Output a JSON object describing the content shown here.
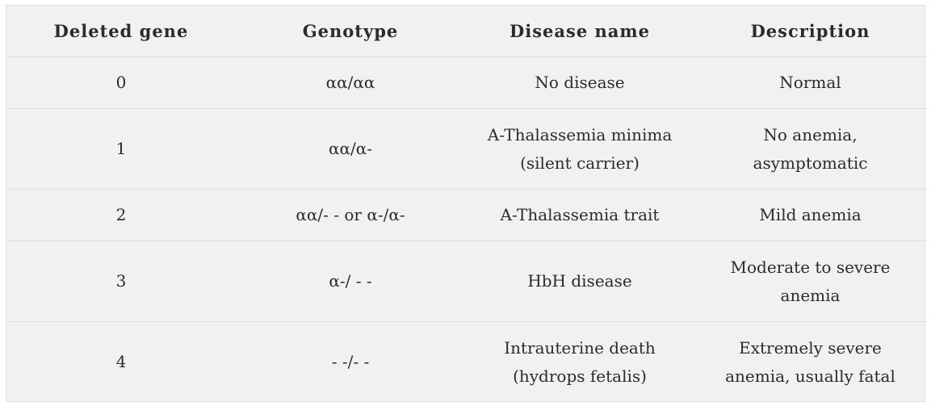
{
  "table": {
    "headers": [
      "Deleted gene",
      "Genotype",
      "Disease name",
      "Description"
    ],
    "rows": [
      {
        "deleted_gene": "0",
        "genotype": "αα/αα",
        "disease_name": [
          "No disease"
        ],
        "description": [
          "Normal"
        ]
      },
      {
        "deleted_gene": "1",
        "genotype": "αα/α-",
        "disease_name": [
          "A-Thalassemia minima",
          "(silent carrier)"
        ],
        "description": [
          "No anemia,",
          "asymptomatic"
        ]
      },
      {
        "deleted_gene": "2",
        "genotype": "αα/- - or α-/α-",
        "disease_name": [
          "A-Thalassemia trait"
        ],
        "description": [
          "Mild anemia"
        ]
      },
      {
        "deleted_gene": "3",
        "genotype": "α-/ - -",
        "disease_name": [
          "HbH disease"
        ],
        "description": [
          "Moderate to severe",
          "anemia"
        ]
      },
      {
        "deleted_gene": "4",
        "genotype": "- -/- -",
        "disease_name": [
          "Intrauterine death",
          "(hydrops fetalis)"
        ],
        "description": [
          "Extremely severe",
          "anemia, usually fatal"
        ]
      }
    ]
  }
}
